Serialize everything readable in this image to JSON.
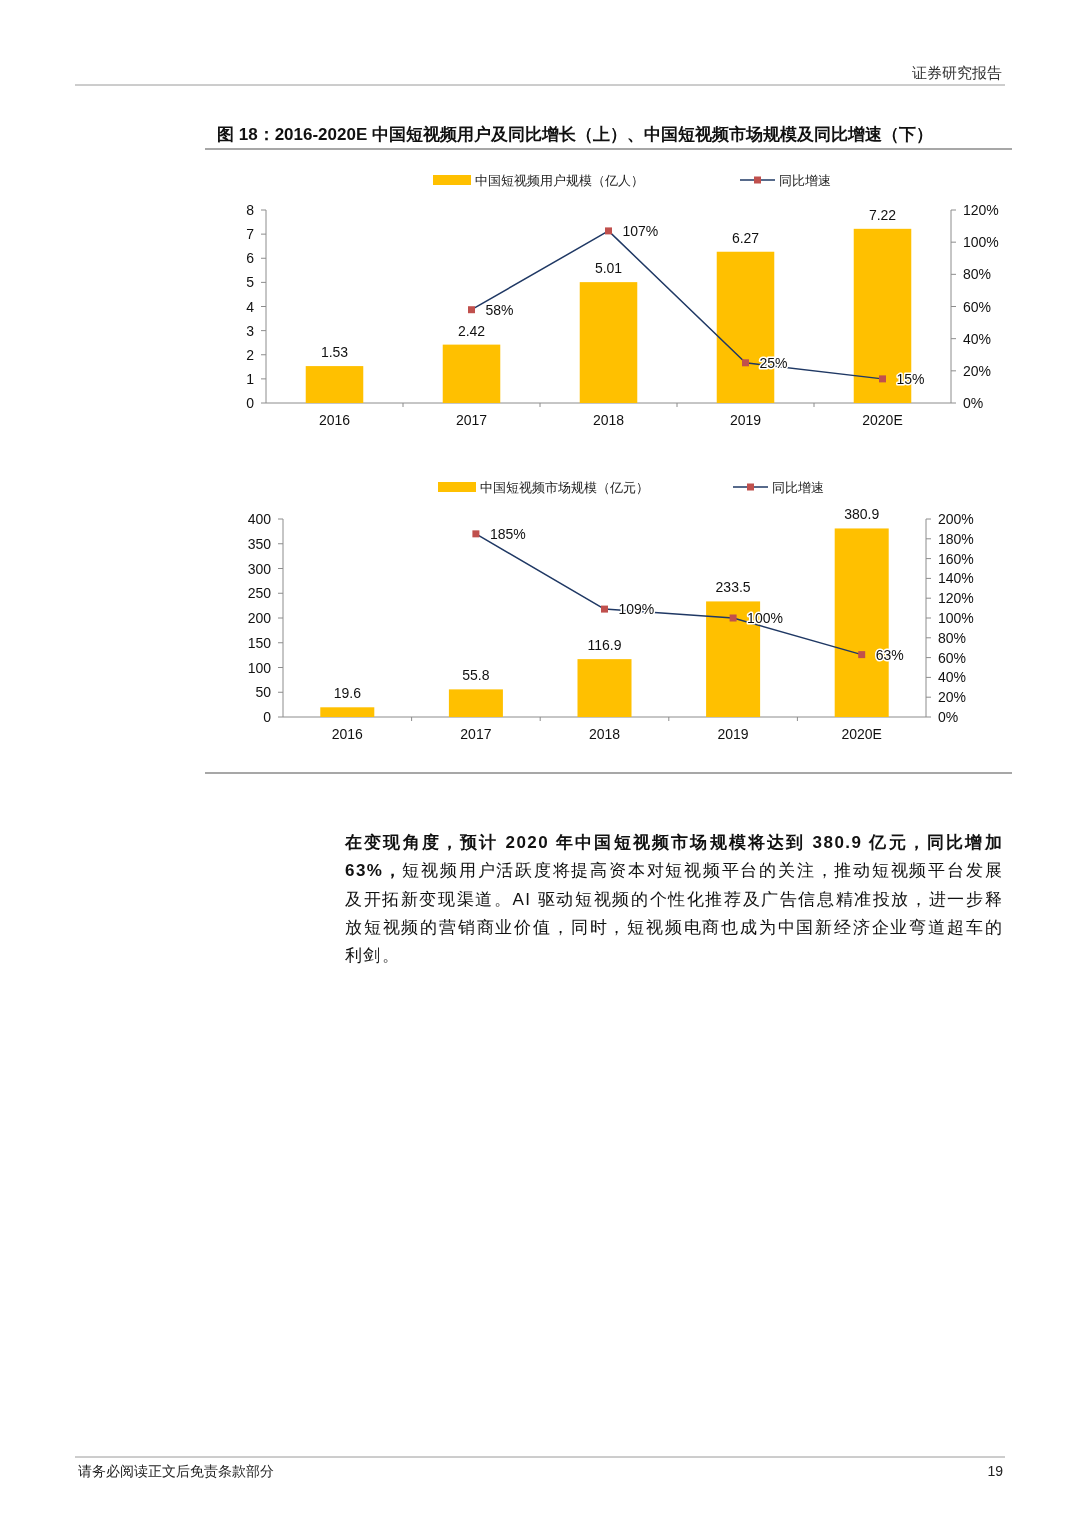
{
  "chart_data": [
    {
      "type": "bar",
      "title": "图 18：2016-2020E 中国短视频用户及同比增长（上）、中国短视频市场规模及同比增速（下）",
      "categories": [
        "2016",
        "2017",
        "2018",
        "2019",
        "2020E"
      ],
      "series": [
        {
          "name": "中国短视频用户规模（亿人）",
          "color": "#ffc000",
          "values": [
            1.53,
            2.42,
            5.01,
            6.27,
            7.22
          ],
          "value_labels": [
            "1.53",
            "2.42",
            "5.01",
            "6.27",
            "7.22"
          ]
        },
        {
          "name": "同比增速",
          "type": "line",
          "axis": "y2",
          "color": "#1f3864",
          "colors": [
            null,
            "#c0504d",
            "#c0504d",
            "#c0504d",
            "#c0504d"
          ],
          "values": [
            null,
            58,
            107,
            25,
            15
          ],
          "value_labels": [
            null,
            "58%",
            "107%",
            "25%",
            "15%"
          ]
        }
      ],
      "ylim": [
        0,
        8
      ],
      "yticks": [
        0,
        1,
        2,
        3,
        4,
        5,
        6,
        7,
        8
      ],
      "y2lim": [
        0,
        120
      ],
      "y2ticks": [
        {
          "value": 0,
          "label": "0%"
        },
        {
          "value": 20,
          "label": "20%"
        },
        {
          "value": 40,
          "label": "40%"
        },
        {
          "value": 60,
          "label": "60%"
        },
        {
          "value": 80,
          "label": "80%"
        },
        {
          "value": 100,
          "label": "100%"
        },
        {
          "value": 120,
          "label": "120%"
        }
      ],
      "legend": "top",
      "marker": "square",
      "annotations": [
        "证券研究报告"
      ]
    },
    {
      "type": "bar",
      "categories": [
        "2016",
        "2017",
        "2018",
        "2019",
        "2020E"
      ],
      "series": [
        {
          "name": "中国短视频市场规模（亿元）",
          "color": "#ffc000",
          "values": [
            19.6,
            55.8,
            116.9,
            233.5,
            380.9
          ],
          "value_labels": [
            "19.6",
            "55.8",
            "116.9",
            "233.5",
            "380.9"
          ]
        },
        {
          "name": "同比增速",
          "type": "line",
          "axis": "y2",
          "color": "#1f3864",
          "colors": [
            null,
            "#c0504d",
            "#c0504d",
            "#c0504d",
            "#c0504d"
          ],
          "values": [
            null,
            185,
            109,
            100,
            63
          ],
          "value_labels": [
            null,
            "185%",
            "109%",
            "100%",
            "63%"
          ]
        }
      ],
      "ylim": [
        0,
        400
      ],
      "yticks": [
        0,
        50,
        100,
        150,
        200,
        250,
        300,
        350,
        400
      ],
      "y2lim": [
        0,
        200
      ],
      "y2ticks": [
        {
          "value": 0,
          "label": "0%"
        },
        {
          "value": 20,
          "label": "20%"
        },
        {
          "value": 40,
          "label": "40%"
        },
        {
          "value": 60,
          "label": "60%"
        },
        {
          "value": 80,
          "label": "80%"
        },
        {
          "value": 100,
          "label": "100%"
        },
        {
          "value": 120,
          "label": "120%"
        },
        {
          "value": 140,
          "label": "140%"
        },
        {
          "value": 160,
          "label": "160%"
        },
        {
          "value": 180,
          "label": "180%"
        },
        {
          "value": 200,
          "label": "200%"
        }
      ],
      "legend": "top",
      "marker": "square",
      "annotations": [
        "**在变现角度，预计 2020 年中国短视频市场规模将达到 380.9 亿元，同比增加 63%，**短视频用户活跃度将提高资本对短视频平台的关注，推动短视频平台发展及开拓新变现渠道。AI 驱动短视频的个性化推荐及广告信息精准投放，进一步释放短视频的营销商业价值，同时，短视频电商也成为中国新经济企业弯道超车的利剑。",
        "请务必阅读正文后免责条款部分",
        "19"
      ]
    }
  ]
}
